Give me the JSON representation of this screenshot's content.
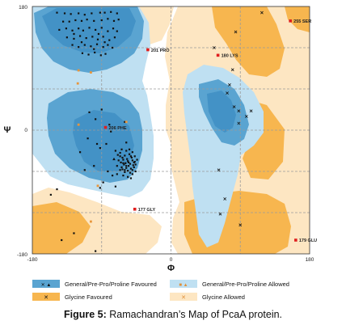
{
  "chart_data": {
    "type": "scatter",
    "xlabel": "Φ",
    "ylabel": "Ψ",
    "xlim": [
      -180,
      180
    ],
    "ylim": [
      -180,
      180
    ],
    "x_ticks": [
      "-180",
      "0",
      "180"
    ],
    "y_ticks": [
      "180",
      "0",
      "-180"
    ],
    "grid": true,
    "colors": {
      "general_favoured": "#5aa4d1",
      "general_allowed": "#bfe0f2",
      "glycine_favoured": "#f7b64f",
      "glycine_allowed": "#fde6c2",
      "point": "#111111",
      "outlier": "#e01e1e"
    },
    "legend": [
      {
        "label": "General/Pre-Pro/Proline Favoured",
        "swatch": "general_favoured",
        "marks": "✕ ▲"
      },
      {
        "label": "General/Pre-Pro/Proline Allowed",
        "swatch": "general_allowed",
        "marks": "■ ▲"
      },
      {
        "label": "Glycine Favoured",
        "swatch": "glycine_favoured",
        "marks": "✕"
      },
      {
        "label": "Glycine Allowed",
        "swatch": "glycine_allowed",
        "marks": "✕"
      }
    ],
    "outliers": [
      {
        "label": "255 SER",
        "x": 155,
        "y": 159
      },
      {
        "label": "201 PRO",
        "x": -30,
        "y": 117
      },
      {
        "label": "180 LYS",
        "x": 61,
        "y": 109
      },
      {
        "label": "206 PHE",
        "x": -85,
        "y": 4
      },
      {
        "label": "177 GLY",
        "x": -47,
        "y": -115
      },
      {
        "label": "179 GLU",
        "x": 162,
        "y": -160
      }
    ],
    "series": [
      {
        "kind": "general",
        "points": [
          [
            -148,
            171
          ],
          [
            -138,
            170
          ],
          [
            -130,
            169
          ],
          [
            -120,
            170
          ],
          [
            -112,
            168
          ],
          [
            -103,
            170
          ],
          [
            -92,
            171
          ],
          [
            -86,
            171
          ],
          [
            -78,
            172
          ],
          [
            -70,
            170
          ],
          [
            -140,
            158
          ],
          [
            -132,
            158
          ],
          [
            -124,
            160
          ],
          [
            -116,
            159
          ],
          [
            -109,
            161
          ],
          [
            -100,
            159
          ],
          [
            -90,
            160
          ],
          [
            -82,
            162
          ],
          [
            -74,
            159
          ],
          [
            -68,
            161
          ],
          [
            -145,
            146
          ],
          [
            -136,
            148
          ],
          [
            -128,
            145
          ],
          [
            -120,
            148
          ],
          [
            -114,
            145
          ],
          [
            -106,
            149
          ],
          [
            -98,
            146
          ],
          [
            -90,
            149
          ],
          [
            -82,
            144
          ],
          [
            -75,
            148
          ],
          [
            -70,
            144
          ],
          [
            -135,
            135
          ],
          [
            -126,
            133
          ],
          [
            -118,
            137
          ],
          [
            -110,
            134
          ],
          [
            -102,
            136
          ],
          [
            -95,
            132
          ],
          [
            -88,
            136
          ],
          [
            -80,
            131
          ],
          [
            -73,
            135
          ],
          [
            -128,
            124
          ],
          [
            -120,
            121
          ],
          [
            -112,
            124
          ],
          [
            -104,
            122
          ],
          [
            -96,
            125
          ],
          [
            -88,
            121
          ],
          [
            -82,
            124
          ],
          [
            -76,
            120
          ],
          [
            -115,
            112
          ],
          [
            -107,
            110
          ],
          [
            -99,
            113
          ],
          [
            -91,
            109
          ],
          [
            -85,
            111
          ],
          [
            -126,
            140
          ],
          [
            -116,
            128
          ],
          [
            -94,
            140
          ],
          [
            -100,
            118
          ],
          [
            -86,
            128
          ],
          [
            -69,
            -36
          ],
          [
            -66,
            -33
          ],
          [
            -63,
            -40
          ],
          [
            -60,
            -37
          ],
          [
            -57,
            -42
          ],
          [
            -54,
            -35
          ],
          [
            -51,
            -40
          ],
          [
            -68,
            -44
          ],
          [
            -65,
            -47
          ],
          [
            -62,
            -43
          ],
          [
            -59,
            -48
          ],
          [
            -56,
            -45
          ],
          [
            -53,
            -49
          ],
          [
            -50,
            -44
          ],
          [
            -70,
            -52
          ],
          [
            -64,
            -54
          ],
          [
            -61,
            -50
          ],
          [
            -58,
            -55
          ],
          [
            -55,
            -52
          ],
          [
            -52,
            -56
          ],
          [
            -49,
            -51
          ],
          [
            -47,
            -46
          ],
          [
            -66,
            -58
          ],
          [
            -60,
            -61
          ],
          [
            -56,
            -59
          ],
          [
            -53,
            -62
          ],
          [
            -50,
            -58
          ],
          [
            -48,
            -54
          ],
          [
            -46,
            -50
          ],
          [
            -72,
            -30
          ],
          [
            -64,
            -28
          ],
          [
            -58,
            -30
          ],
          [
            -54,
            -28
          ],
          [
            -50,
            -32
          ],
          [
            -47,
            -38
          ],
          [
            -70,
            -64
          ],
          [
            -62,
            -66
          ],
          [
            -56,
            -68
          ],
          [
            -50,
            -64
          ],
          [
            -52,
            -70
          ],
          [
            -46,
            -60
          ],
          [
            -44,
            -43
          ],
          [
            -66,
            -38
          ],
          [
            -62,
            -48
          ],
          [
            -58,
            -52
          ],
          [
            -60,
            -58
          ],
          [
            -55,
            -47
          ],
          [
            -52,
            -38
          ],
          [
            -48,
            -47
          ],
          [
            -63,
            -57
          ],
          [
            -84,
            -20
          ],
          [
            -92,
            -26
          ],
          [
            -78,
            -2
          ],
          [
            -88,
            -76
          ],
          [
            -72,
            -82
          ],
          [
            -108,
            -12
          ],
          [
            -100,
            -52
          ],
          [
            -96,
            -20
          ],
          [
            -76,
            -66
          ],
          [
            -98,
            16
          ],
          [
            -106,
            26
          ],
          [
            -90,
            30
          ],
          [
            -80,
            8
          ],
          [
            -60,
            12
          ],
          [
            -58,
            -18
          ],
          [
            -92,
            -84
          ],
          [
            -82,
            -60
          ],
          [
            -156,
            -94
          ],
          [
            -142,
            -160
          ],
          [
            -126,
            -150
          ],
          [
            -98,
            -176
          ],
          [
            -148,
            -86
          ],
          [
            -118,
            -32
          ],
          [
            -112,
            -58
          ]
        ]
      },
      {
        "kind": "glycine",
        "points": [
          [
            118,
            171
          ],
          [
            84,
            143
          ],
          [
            56,
            120
          ],
          [
            80,
            88
          ],
          [
            76,
            66
          ],
          [
            73,
            54
          ],
          [
            82,
            34
          ],
          [
            88,
            28
          ],
          [
            98,
            20
          ],
          [
            104,
            28
          ],
          [
            88,
            10
          ],
          [
            62,
            -58
          ],
          [
            64,
            -122
          ],
          [
            90,
            -138
          ],
          [
            70,
            -100
          ]
        ]
      },
      {
        "kind": "pre-pro",
        "points": [
          [
            -120,
            87
          ],
          [
            -121,
            68
          ],
          [
            -104,
            84
          ],
          [
            -58,
            12
          ],
          [
            -95,
            -81
          ],
          [
            -104,
            -133
          ],
          [
            -120,
            8
          ]
        ]
      },
      {
        "kind": "proline",
        "points": [
          [
            -74,
            -42
          ]
        ]
      }
    ]
  },
  "caption": {
    "label": "Figure 5:",
    "text": " Ramachandran’s Map of PcaA protein."
  }
}
